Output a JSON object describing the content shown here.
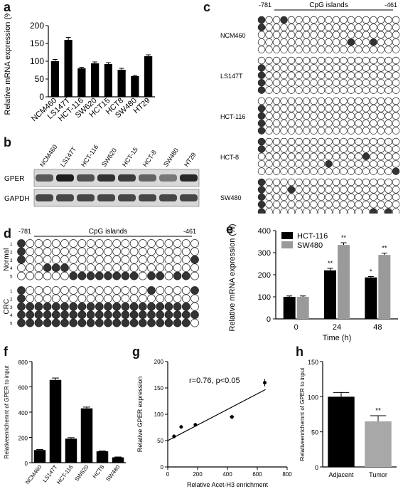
{
  "panel_labels": {
    "a": "a",
    "b": "b",
    "c": "c",
    "d": "d",
    "e": "e",
    "f": "f",
    "g": "g",
    "h": "h"
  },
  "chart_data": [
    {
      "panel": "a",
      "type": "bar",
      "categories": [
        "NCM460",
        "LS147T",
        "HCT-116",
        "SW620",
        "HCT15",
        "HCT8",
        "SW480",
        "HT29"
      ],
      "values": [
        100,
        160,
        80,
        94,
        92,
        76,
        58,
        114
      ],
      "errors": [
        5,
        7,
        3,
        4,
        4,
        4,
        2,
        4
      ],
      "ylabel": "Relative mRNA expression (%)",
      "ylim": [
        0,
        200
      ],
      "yticks": [
        0,
        50,
        100,
        150,
        200
      ]
    },
    {
      "panel": "e",
      "type": "bar",
      "categories": [
        "0",
        "24",
        "48"
      ],
      "series": [
        {
          "name": "HCT-116",
          "values": [
            100,
            220,
            188
          ],
          "errors": [
            4,
            9,
            4
          ],
          "sig": [
            "",
            "**",
            "*"
          ],
          "color": "#000000"
        },
        {
          "name": "SW480",
          "values": [
            100,
            335,
            290
          ],
          "errors": [
            4,
            10,
            8
          ],
          "sig": [
            "",
            "**",
            "**"
          ],
          "color": "#9a9a9a"
        }
      ],
      "xlabel": "Time (h)",
      "ylabel": "Relative mRNA expression (%)",
      "ylim": [
        0,
        400
      ],
      "yticks": [
        0,
        100,
        200,
        300,
        400
      ],
      "legend": "top-left"
    },
    {
      "panel": "f",
      "type": "bar",
      "categories": [
        "NCM460",
        "LS147T",
        "HCT-116",
        "SW620",
        "HCT8",
        "SW480"
      ],
      "values": [
        100,
        655,
        190,
        430,
        90,
        42
      ],
      "errors": [
        4,
        15,
        8,
        10,
        3,
        3
      ],
      "ylabel": "Relativeenrichemnt of GPER to input",
      "ylim": [
        0,
        800
      ],
      "yticks": [
        0,
        200,
        400,
        600,
        800
      ]
    },
    {
      "panel": "g",
      "type": "scatter",
      "x": [
        42,
        90,
        185,
        430,
        650
      ],
      "y": [
        58,
        76,
        80,
        95,
        160
      ],
      "xerr": [
        8,
        8,
        10,
        15,
        12
      ],
      "yerr": [
        4,
        3,
        3,
        4,
        7
      ],
      "annotation": "r=0.76, p<0.05",
      "fit": [
        [
          0,
          50
        ],
        [
          655,
          147
        ]
      ],
      "xlabel": "Relative Acet-H3 enrichment",
      "ylabel": "Relative GPER expression",
      "xlim": [
        0,
        800
      ],
      "ylim": [
        0,
        200
      ],
      "xticks": [
        0,
        200,
        400,
        600,
        800
      ],
      "yticks": [
        0,
        50,
        100,
        150,
        200
      ]
    },
    {
      "panel": "h",
      "type": "bar",
      "categories": [
        "Adjacent",
        "Tumor"
      ],
      "values": [
        100,
        65
      ],
      "errors": [
        6,
        8
      ],
      "sig": [
        "",
        "**"
      ],
      "colors": [
        "#000000",
        "#a8a8a8"
      ],
      "ylabel": "Relativeenrichemnt of GPER to input",
      "ylim": [
        0,
        150
      ],
      "yticks": [
        0,
        50,
        100,
        150
      ]
    }
  ],
  "western": {
    "lanes": [
      "NCM460",
      "LS147T",
      "HCT-116",
      "SW620",
      "HCT-15",
      "HCT-8",
      "SW480",
      "HT29"
    ],
    "rows": [
      {
        "label": "GPER",
        "intensity": [
          0.65,
          0.95,
          0.7,
          0.85,
          0.8,
          0.6,
          0.5,
          0.9
        ]
      },
      {
        "label": "GAPDH",
        "intensity": [
          0.75,
          0.75,
          0.75,
          0.75,
          0.75,
          0.75,
          0.75,
          0.75
        ]
      }
    ]
  },
  "methylation_c": {
    "start": "-781",
    "end": "-461",
    "title": "CpG islands",
    "sites": 19,
    "groups": [
      {
        "label": "NCM460",
        "rows": [
          [
            0,
            3
          ],
          [
            0
          ],
          [],
          [
            12,
            15
          ],
          []
        ]
      },
      {
        "label": "LS147T",
        "rows": [
          [],
          [
            0
          ],
          [
            0
          ],
          [
            0
          ],
          [
            0
          ]
        ]
      },
      {
        "label": "HCT-116",
        "rows": [
          [],
          [
            0
          ],
          [
            0
          ],
          [
            0
          ],
          [
            0
          ]
        ]
      },
      {
        "label": "HCT-8",
        "rows": [
          [
            0
          ],
          [
            0
          ],
          [
            14
          ],
          [
            9
          ],
          [
            18
          ]
        ]
      },
      {
        "label": "SW480",
        "rows": [
          [
            0
          ],
          [
            0,
            4
          ],
          [
            0
          ],
          [
            0
          ],
          [
            0,
            15,
            17
          ]
        ]
      }
    ]
  },
  "methylation_d": {
    "start": "-781",
    "end": "-461",
    "title": "CpG islands",
    "sites": 21,
    "groups": [
      {
        "label": "Normal",
        "rows": [
          {
            "n": "1",
            "m": [
              0
            ]
          },
          {
            "n": "2",
            "m": [
              0
            ]
          },
          {
            "n": "3",
            "m": [
              0,
              20
            ]
          },
          {
            "n": "4",
            "m": [
              3,
              4,
              5
            ]
          },
          {
            "n": "5",
            "m": [
              6,
              7,
              8,
              9,
              10,
              11,
              12,
              13,
              15,
              16,
              18,
              19
            ]
          }
        ]
      },
      {
        "label": "CRC",
        "rows": [
          {
            "n": "1",
            "m": [
              0,
              15,
              20
            ]
          },
          {
            "n": "2",
            "m": [
              0
            ]
          },
          {
            "n": "3",
            "m": [
              0,
              1,
              2,
              3,
              4,
              5,
              6,
              7,
              8,
              9,
              10,
              11,
              12,
              13,
              14,
              15,
              16,
              17,
              18,
              19
            ]
          },
          {
            "n": "4",
            "m": [
              0,
              1,
              2,
              3,
              4,
              5,
              6,
              7,
              8,
              9,
              10,
              11,
              12,
              13,
              14,
              15,
              16,
              17,
              18,
              19,
              20
            ]
          },
          {
            "n": "5",
            "m": [
              0,
              1,
              2,
              3,
              4,
              5,
              6,
              7,
              8,
              9,
              10,
              11,
              12,
              13,
              14,
              15,
              16,
              17,
              18,
              19
            ]
          }
        ]
      }
    ]
  }
}
